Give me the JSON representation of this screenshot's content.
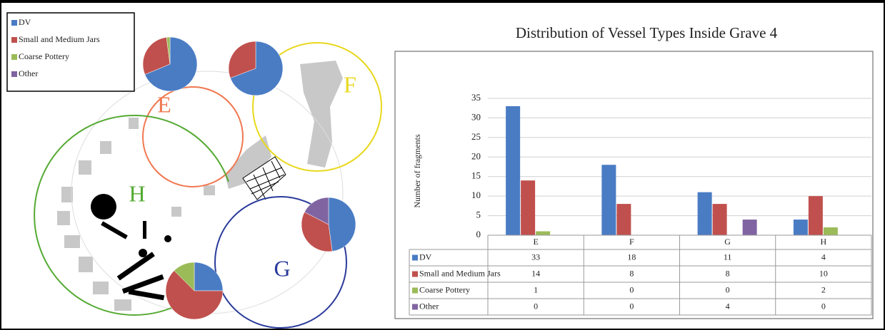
{
  "chart_data": {
    "type": "bar",
    "title": "Distribution of Vessel Types Inside Grave 4",
    "ylabel": "Number of fragments",
    "categories": [
      "E",
      "F",
      "G",
      "H"
    ],
    "series": [
      {
        "name": "DV",
        "color": "#4a7cc4",
        "values": [
          33,
          18,
          11,
          4
        ]
      },
      {
        "name": "Small and Medium Jars",
        "color": "#c0504d",
        "values": [
          14,
          8,
          8,
          10
        ]
      },
      {
        "name": "Coarse Pottery",
        "color": "#9bbb59",
        "values": [
          1,
          0,
          0,
          2
        ]
      },
      {
        "name": "Other",
        "color": "#8064a2",
        "values": [
          0,
          0,
          4,
          0
        ]
      }
    ],
    "ylim": [
      0,
      35
    ],
    "yticks": [
      0,
      5,
      10,
      15,
      20,
      25,
      30,
      35
    ],
    "grid": true,
    "data_table": true
  }
}
